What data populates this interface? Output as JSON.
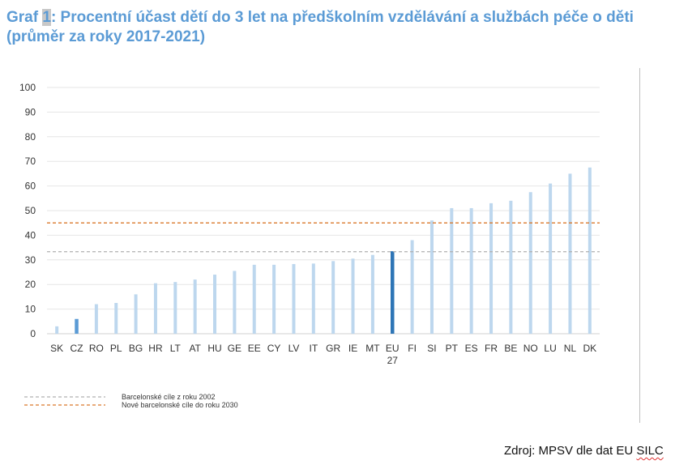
{
  "title": {
    "prefix": "Graf ",
    "number": "1",
    "rest": ": Procentní účast dětí do 3 let na předškolním vzdělávání a službách péče o děti",
    "line2": "(průměr za roky 2017-2021)"
  },
  "source": {
    "prefix": "Zdroj: MPSV dle dat EU ",
    "squiggled": "SILC"
  },
  "chart_data": {
    "type": "bar",
    "title": "Procentní účast dětí do 3 let na předškolním vzdělávání a službách péče o děti (průměr za roky 2017-2021)",
    "xlabel": "",
    "ylabel": "",
    "ylim": [
      0,
      100
    ],
    "yticks": [
      0,
      10,
      20,
      30,
      40,
      50,
      60,
      70,
      80,
      90,
      100
    ],
    "grid": true,
    "categories": [
      "SK",
      "CZ",
      "RO",
      "PL",
      "BG",
      "HR",
      "LT",
      "AT",
      "HU",
      "GE",
      "EE",
      "CY",
      "LV",
      "IT",
      "GR",
      "IE",
      "MT",
      "EU 27",
      "FI",
      "SI",
      "PT",
      "ES",
      "FR",
      "BE",
      "NO",
      "LU",
      "NL",
      "DK"
    ],
    "values": [
      3,
      6,
      12,
      12.5,
      16,
      20.5,
      21,
      22,
      24,
      25.5,
      28,
      28,
      28.3,
      28.5,
      29.5,
      30.5,
      32,
      33.5,
      38,
      46,
      51,
      51,
      53,
      54,
      57.5,
      61,
      65,
      67.5
    ],
    "highlight": {
      "CZ": "#5b9bd5",
      "EU 27": "#2e75b6"
    },
    "bar_color": "#bdd7ee",
    "reference_lines": [
      {
        "label": "Barcelonské cíle z roku 2002",
        "value": 33.3,
        "color": "#b0b0b0"
      },
      {
        "label": "Nové barcelonské cíle do roku 2030",
        "value": 45,
        "color": "#d9782b"
      }
    ],
    "legend_position": "bottom-left"
  }
}
